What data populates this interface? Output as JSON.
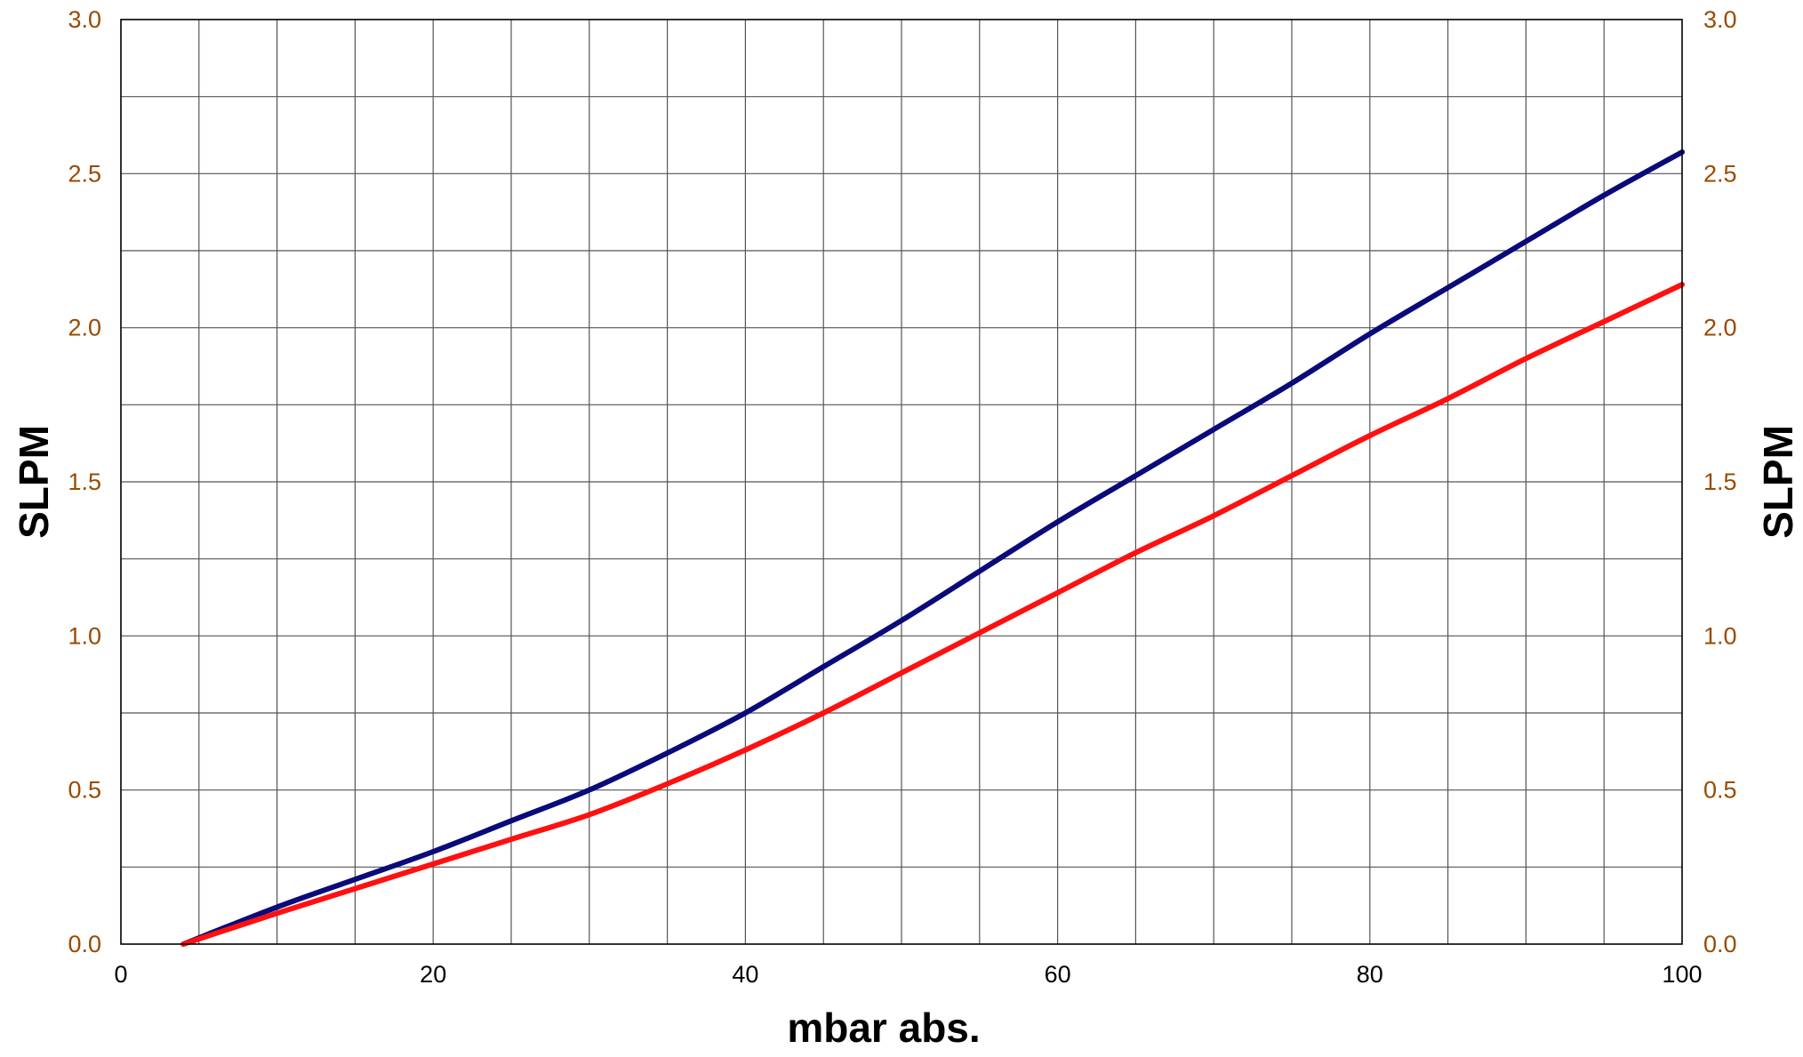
{
  "chart_data": {
    "type": "line",
    "title": "",
    "xlabel": "mbar abs.",
    "ylabel_left": "SLPM",
    "ylabel_right": "SLPM",
    "xlim": [
      0,
      100
    ],
    "ylim": [
      0,
      3.0
    ],
    "x_ticks": [
      0,
      20,
      40,
      60,
      80,
      100
    ],
    "x_tick_labels": [
      "0",
      "20",
      "40",
      "60",
      "80",
      "100"
    ],
    "y_ticks": [
      0,
      0.5,
      1.0,
      1.5,
      2.0,
      2.5,
      3.0
    ],
    "y_tick_labels": [
      "0.0",
      "0.5",
      "1.0",
      "1.5",
      "2.0",
      "2.5",
      "3.0"
    ],
    "x_grid_step": 5,
    "y_grid_step": 0.25,
    "grid": true,
    "legend": "none",
    "colors": {
      "tick_label": "#9A4A00",
      "axis_title": "#000000",
      "grid": "#555555",
      "frame": "#000000"
    },
    "series": [
      {
        "color": "#0A0A7A",
        "x": [
          4,
          10,
          15,
          20,
          25,
          30,
          35,
          40,
          45,
          50,
          55,
          60,
          65,
          70,
          75,
          80,
          85,
          90,
          95,
          100
        ],
        "y": [
          0.0,
          0.12,
          0.21,
          0.3,
          0.4,
          0.5,
          0.62,
          0.75,
          0.9,
          1.05,
          1.21,
          1.37,
          1.52,
          1.67,
          1.82,
          1.98,
          2.13,
          2.28,
          2.43,
          2.57
        ]
      },
      {
        "color": "#FF1010",
        "x": [
          4,
          10,
          15,
          20,
          25,
          30,
          35,
          40,
          45,
          50,
          55,
          60,
          65,
          70,
          75,
          80,
          85,
          90,
          95,
          100
        ],
        "y": [
          0.0,
          0.1,
          0.18,
          0.26,
          0.34,
          0.42,
          0.52,
          0.63,
          0.75,
          0.88,
          1.01,
          1.14,
          1.27,
          1.39,
          1.52,
          1.65,
          1.77,
          1.9,
          2.02,
          2.14
        ]
      }
    ]
  }
}
